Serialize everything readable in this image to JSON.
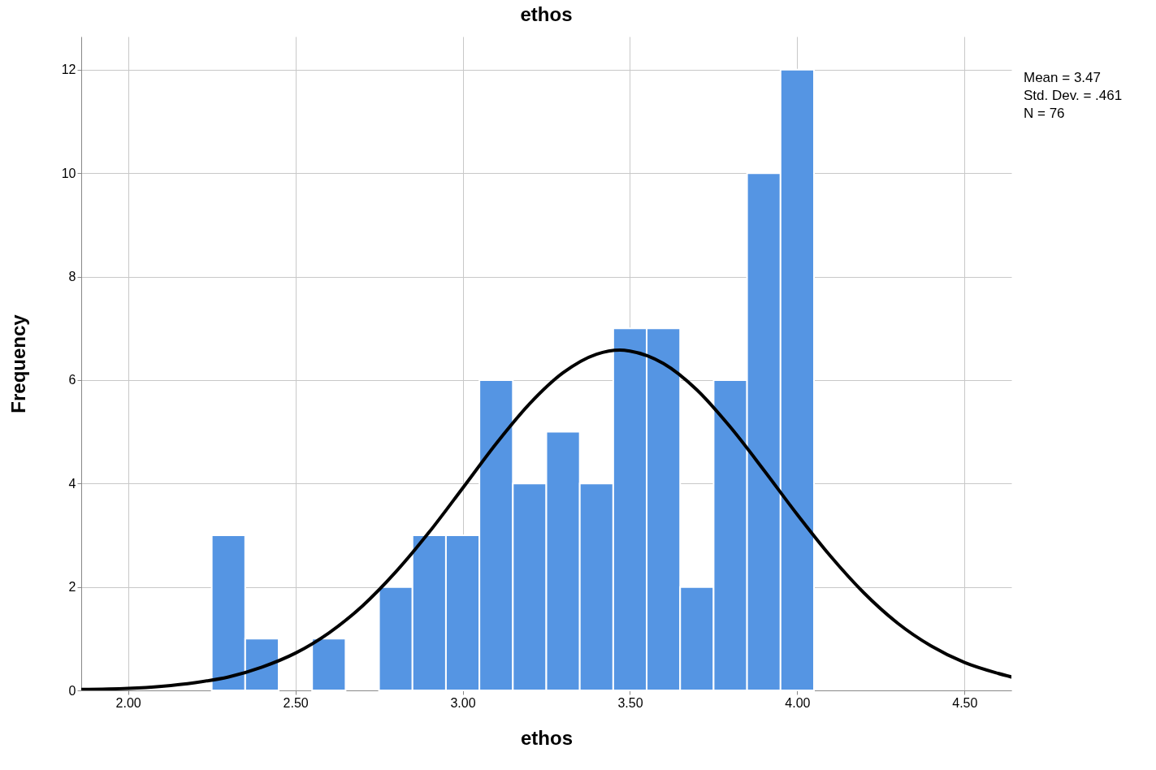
{
  "chart_data": {
    "type": "histogram",
    "title": "ethos",
    "xlabel": "ethos",
    "ylabel": "Frequency",
    "bins": [
      2.25,
      2.35,
      2.45,
      2.55,
      2.65,
      2.75,
      2.85,
      2.95,
      3.05,
      3.15,
      3.25,
      3.35,
      3.45,
      3.55,
      3.65,
      3.75,
      3.85,
      3.95,
      4.05
    ],
    "values": [
      3,
      1,
      0,
      1,
      0,
      2,
      3,
      3,
      6,
      4,
      5,
      4,
      7,
      7,
      2,
      6,
      10,
      12
    ],
    "color": "#5595e3",
    "series": [
      {
        "type": "line",
        "color": "#000000",
        "x": [
          1.86,
          2.0,
          2.1,
          2.2,
          2.3,
          2.4,
          2.5,
          2.6,
          2.7,
          2.8,
          2.9,
          3.0,
          3.1,
          3.2,
          3.3,
          3.4,
          3.47,
          3.5,
          3.6,
          3.7,
          3.8,
          3.9,
          4.0,
          4.1,
          4.2,
          4.3,
          4.4,
          4.5,
          4.6,
          4.64
        ],
        "values": [
          0.02,
          0.04,
          0.08,
          0.15,
          0.26,
          0.45,
          0.72,
          1.11,
          1.63,
          2.29,
          3.06,
          3.91,
          4.77,
          5.54,
          6.14,
          6.5,
          6.58,
          6.56,
          6.32,
          5.81,
          5.09,
          4.26,
          3.4,
          2.59,
          1.88,
          1.3,
          0.86,
          0.54,
          0.33,
          0.26
        ]
      }
    ],
    "xlim": [
      1.86,
      4.64
    ],
    "ylim": [
      0,
      12.64
    ],
    "xticks": [
      {
        "value": 2,
        "label": "2.00"
      },
      {
        "value": 2.5,
        "label": "2.50"
      },
      {
        "value": 3,
        "label": "3.00"
      },
      {
        "value": 3.5,
        "label": "3.50"
      },
      {
        "value": 4,
        "label": "4.00"
      },
      {
        "value": 4.5,
        "label": "4.50"
      }
    ],
    "yticks": [
      0,
      2,
      4,
      6,
      8,
      10,
      12
    ],
    "grid": true,
    "annotations": [
      "Mean = 3.47",
      "Std. Dev. = .461",
      "N = 76"
    ]
  }
}
